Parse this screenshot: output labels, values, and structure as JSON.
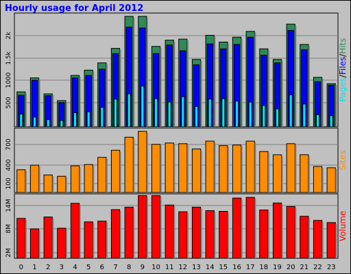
{
  "title": "Hourly usage for April 2012",
  "colors": {
    "background": "#c0c0c0",
    "hits": "#2e8b57",
    "files": "#0000ff",
    "pages": "#00e5ee",
    "sites": "#ff8c00",
    "volume": "#ff0000",
    "title": "#0000ff"
  },
  "chart_data": [
    {
      "type": "bar",
      "categories": [
        "0",
        "1",
        "2",
        "3",
        "4",
        "5",
        "6",
        "7",
        "8",
        "9",
        "10",
        "11",
        "12",
        "13",
        "14",
        "15",
        "16",
        "17",
        "18",
        "19",
        "20",
        "21",
        "22",
        "23"
      ],
      "series": [
        {
          "name": "Hits",
          "values": [
            720,
            1010,
            680,
            540,
            1060,
            1170,
            1320,
            1620,
            2280,
            2280,
            1660,
            1790,
            1810,
            1390,
            1890,
            1750,
            1850,
            1970,
            1610,
            1390,
            2120,
            1700,
            1020,
            890
          ]
        },
        {
          "name": "Files",
          "values": [
            650,
            960,
            640,
            500,
            1010,
            1060,
            1190,
            1510,
            2060,
            2040,
            1510,
            1690,
            1570,
            1280,
            1710,
            1610,
            1700,
            1850,
            1480,
            1320,
            1990,
            1590,
            930,
            860
          ]
        },
        {
          "name": "Pages",
          "values": [
            260,
            200,
            150,
            130,
            290,
            310,
            400,
            570,
            680,
            840,
            580,
            510,
            620,
            420,
            570,
            580,
            530,
            510,
            440,
            370,
            660,
            470,
            250,
            230
          ]
        }
      ],
      "axis_label": [
        "Pages",
        "/",
        "Files",
        "/",
        "Hits"
      ],
      "yticks": [
        "500",
        "1000",
        "1.5k",
        "2k"
      ],
      "ylim": [
        0,
        2350
      ],
      "grid": true
    },
    {
      "type": "bar",
      "categories": [
        "0",
        "1",
        "2",
        "3",
        "4",
        "5",
        "6",
        "7",
        "8",
        "9",
        "10",
        "11",
        "12",
        "13",
        "14",
        "15",
        "16",
        "17",
        "18",
        "19",
        "20",
        "21",
        "22",
        "23"
      ],
      "series": [
        {
          "name": "Sites",
          "values": [
            350,
            420,
            270,
            250,
            410,
            430,
            540,
            650,
            850,
            940,
            740,
            760,
            750,
            670,
            790,
            720,
            730,
            790,
            630,
            580,
            750,
            580,
            400,
            380
          ]
        }
      ],
      "axis_label": "Sites",
      "yticks": [
        "100",
        "400",
        "700"
      ],
      "ylim": [
        0,
        990
      ],
      "grid": true
    },
    {
      "type": "bar",
      "categories": [
        "0",
        "1",
        "2",
        "3",
        "4",
        "5",
        "6",
        "7",
        "8",
        "9",
        "10",
        "11",
        "12",
        "13",
        "14",
        "15",
        "16",
        "17",
        "18",
        "19",
        "20",
        "21",
        "22",
        "23"
      ],
      "series": [
        {
          "name": "Volume",
          "values": [
            11.4,
            8.4,
            11.8,
            8.6,
            15.7,
            10.4,
            10.6,
            13.9,
            14.6,
            17.9,
            17.9,
            15.2,
            13.3,
            14.6,
            13.6,
            13.4,
            17.2,
            17.4,
            13.8,
            15.8,
            14.8,
            12.0,
            10.8,
            10.2
          ]
        }
      ],
      "axis_label": "Volume",
      "yticks": [
        "2M",
        "8M",
        "14M"
      ],
      "ylim": [
        0,
        18.4
      ],
      "grid": true
    }
  ]
}
